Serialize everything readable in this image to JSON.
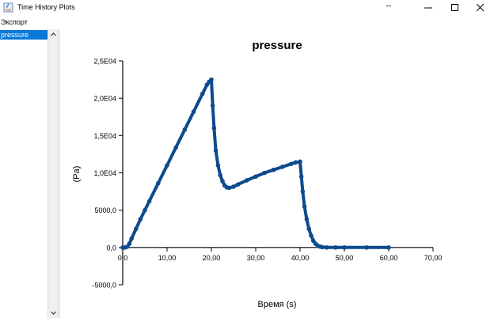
{
  "window": {
    "title": "Time History Plots"
  },
  "menu": {
    "items": [
      "Экспорт"
    ]
  },
  "sidebar": {
    "items": [
      {
        "label": "pressure",
        "selected": true
      }
    ]
  },
  "chart_data": {
    "type": "line",
    "title": "pressure",
    "xlabel": "Время (s)",
    "ylabel": "(Pa)",
    "xlim": [
      0,
      70
    ],
    "ylim": [
      -5000,
      25000
    ],
    "xticks": [
      0,
      10,
      20,
      30,
      40,
      50,
      60,
      70
    ],
    "xtick_labels": [
      "0,0",
      "10,00",
      "20,00",
      "30,00",
      "40,00",
      "50,00",
      "60,00",
      "70,00"
    ],
    "yticks": [
      -5000,
      0,
      5000,
      10000,
      15000,
      20000,
      25000
    ],
    "ytick_labels": [
      "-5000,0",
      "0,0",
      "5000,0",
      "1,0E04",
      "1,5E04",
      "2,0E04",
      "2,5E04"
    ],
    "series": [
      {
        "color": "#0d4a8c",
        "x": [
          0,
          0.5,
          1,
          1.5,
          2,
          3,
          4,
          5,
          6,
          8,
          10,
          12,
          14,
          16,
          18,
          19,
          19.5,
          20,
          20.3,
          20.6,
          21,
          21.5,
          22,
          22.5,
          23,
          23.5,
          24,
          25,
          26,
          28,
          30,
          32,
          34,
          36,
          38,
          39,
          40,
          40.3,
          40.6,
          41,
          41.5,
          42,
          42.5,
          43,
          43.5,
          44,
          44.5,
          45,
          46,
          48,
          50,
          55,
          60
        ],
        "y": [
          0,
          0,
          100,
          500,
          1200,
          2500,
          3800,
          5000,
          6200,
          8600,
          11000,
          13400,
          15800,
          18200,
          20600,
          21800,
          22200,
          22500,
          19000,
          16000,
          13000,
          11000,
          9700,
          8900,
          8300,
          8050,
          8000,
          8150,
          8450,
          9000,
          9500,
          10000,
          10400,
          10800,
          11200,
          11400,
          11500,
          9500,
          7500,
          5500,
          3800,
          2500,
          1600,
          900,
          500,
          250,
          120,
          50,
          10,
          0,
          0,
          0,
          0
        ]
      }
    ]
  }
}
